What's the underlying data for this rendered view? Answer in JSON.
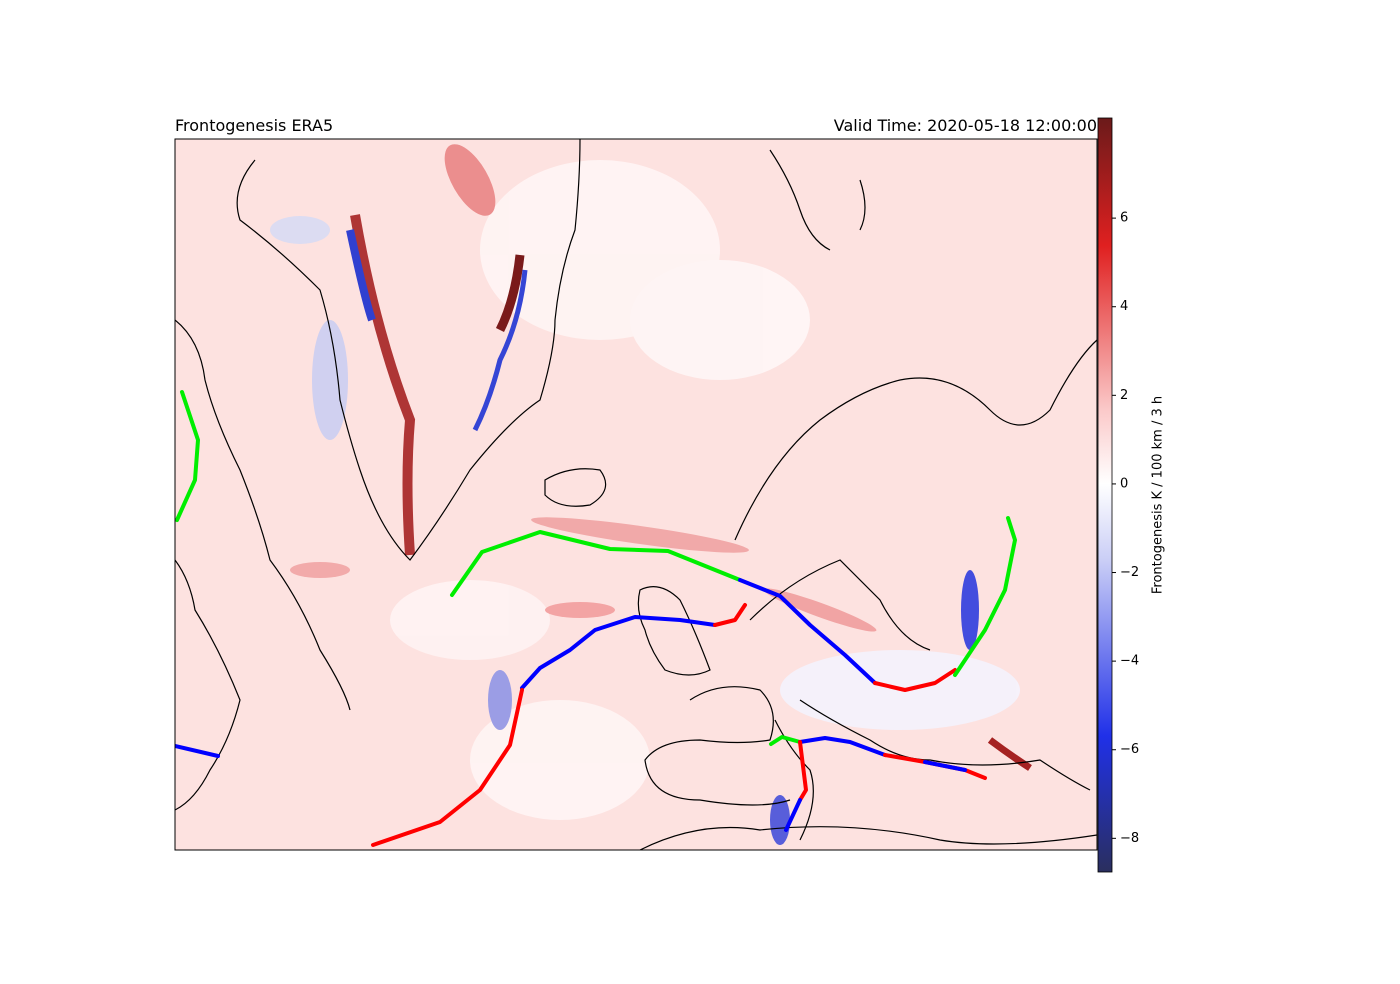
{
  "map": {
    "title_left": "Frontogenesis ERA5",
    "title_right": "Valid Time: 2020-05-18 12:00:00",
    "colorbar": {
      "label": "Frontogenesis K / 100 km / 3 h",
      "lim": [
        -8.76,
        8.26
      ],
      "ticks": [
        {
          "value": -8,
          "label": "−8"
        },
        {
          "value": -6,
          "label": "−6"
        },
        {
          "value": -4,
          "label": "−4"
        },
        {
          "value": -2,
          "label": "−2"
        },
        0,
        2,
        4,
        6
      ]
    }
  }
}
